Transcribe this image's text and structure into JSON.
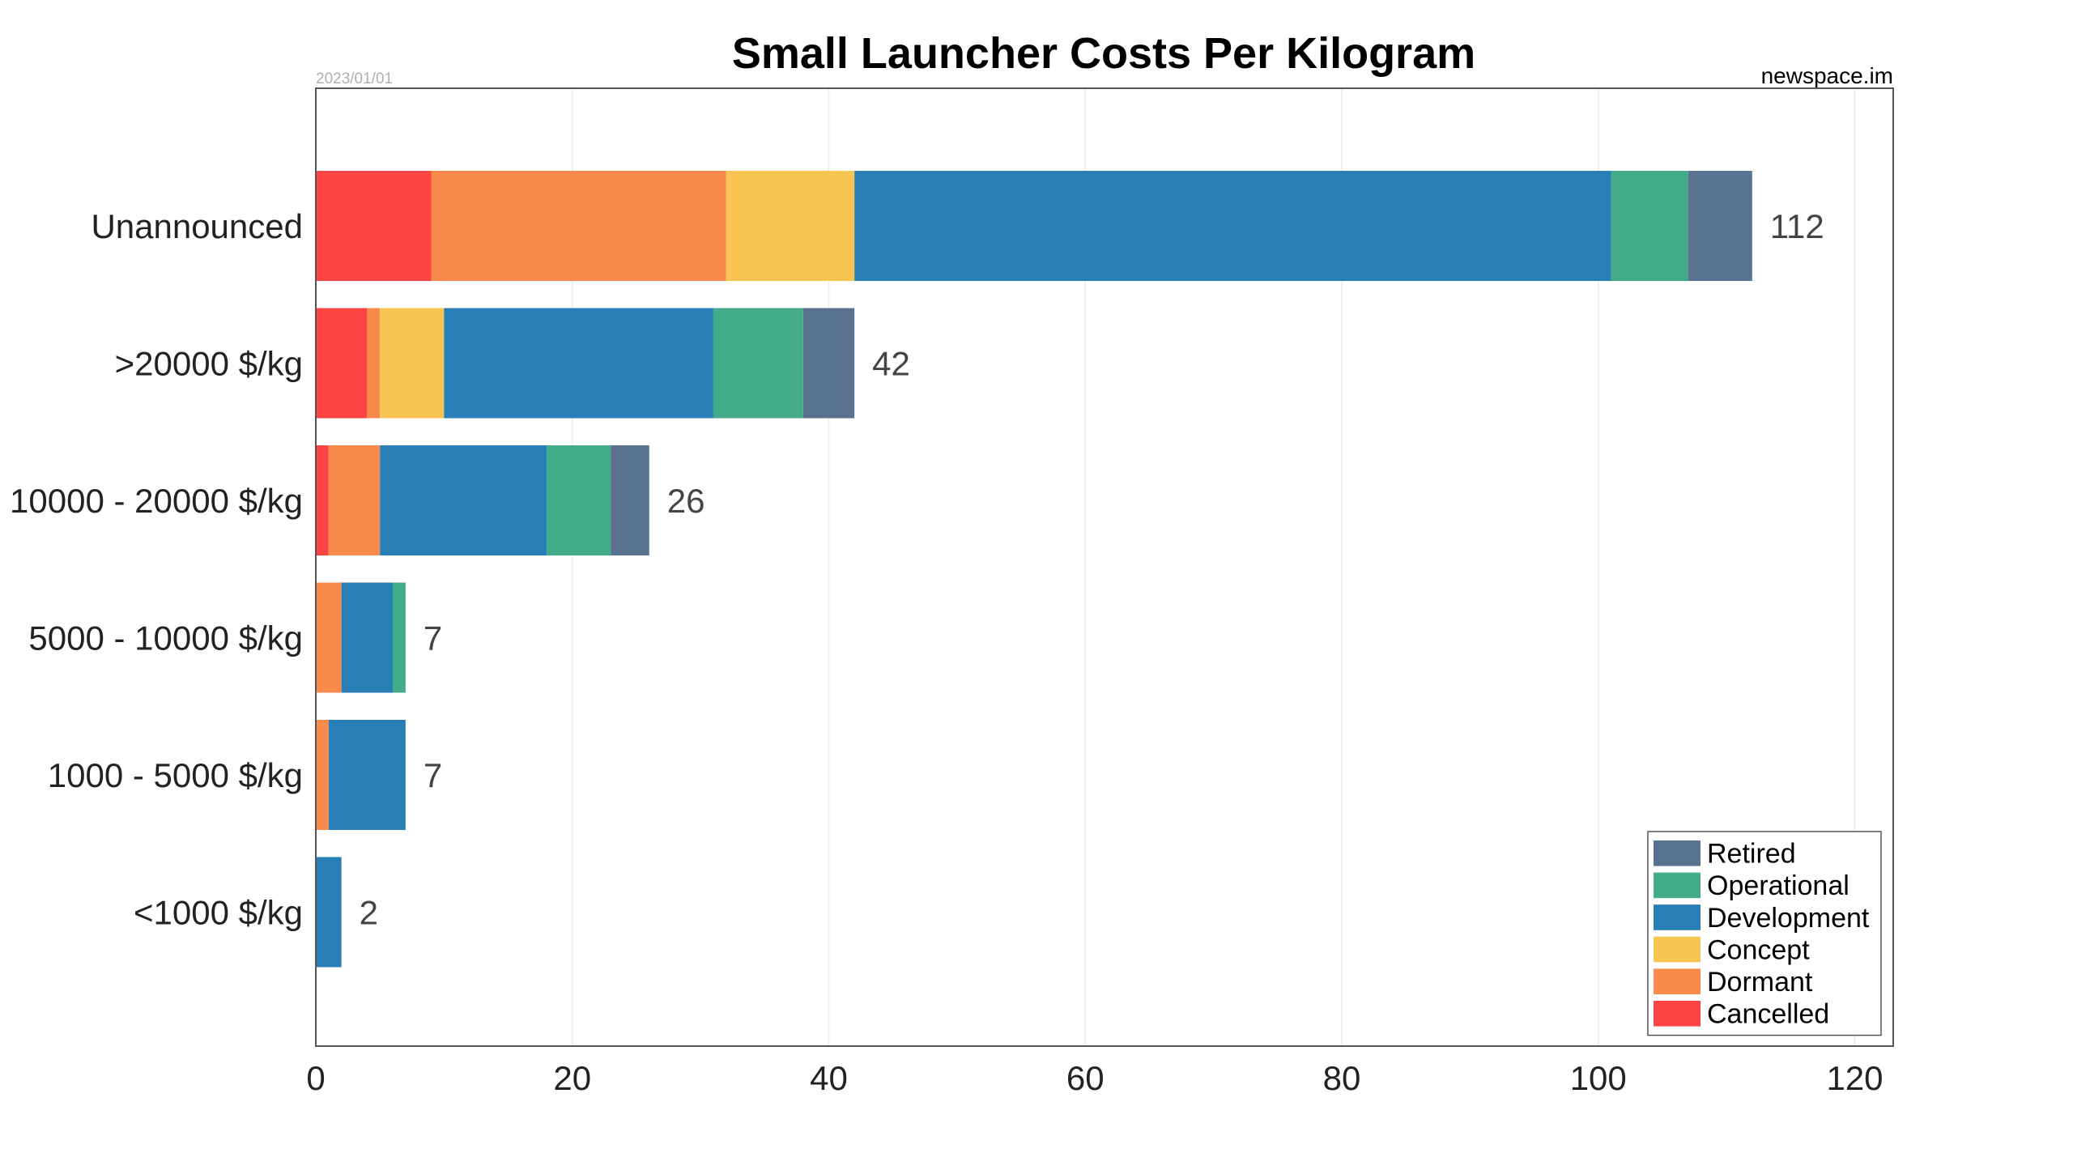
{
  "chart_data": {
    "type": "bar",
    "orientation": "horizontal",
    "stacked": true,
    "title": "Small Launcher Costs Per Kilogram",
    "date_label": "2023/01/01",
    "source_label": "newspace.im",
    "categories": [
      "Unannounced",
      ">20000 $/kg",
      "10000 - 20000 $/kg",
      "5000 - 10000 $/kg",
      "1000 - 5000 $/kg",
      "<1000 $/kg"
    ],
    "series": [
      {
        "name": "Cancelled",
        "color": "#fc4444",
        "values": [
          9,
          4,
          1,
          0,
          0,
          0
        ]
      },
      {
        "name": "Dormant",
        "color": "#fa8a4b",
        "values": [
          23,
          1,
          4,
          2,
          1,
          0
        ]
      },
      {
        "name": "Concept",
        "color": "#f9c552",
        "values": [
          10,
          5,
          0,
          0,
          0,
          0
        ]
      },
      {
        "name": "Development",
        "color": "#287eb7",
        "values": [
          59,
          21,
          13,
          4,
          6,
          2
        ]
      },
      {
        "name": "Operational",
        "color": "#44ab8a",
        "values": [
          6,
          7,
          5,
          1,
          0,
          0
        ]
      },
      {
        "name": "Retired",
        "color": "#58728f",
        "values": [
          5,
          4,
          3,
          0,
          0,
          0
        ]
      }
    ],
    "totals": [
      "112",
      "42",
      "26",
      "7",
      "7",
      "2"
    ],
    "x_ticks": [
      "0",
      "20",
      "40",
      "60",
      "80",
      "100",
      "120"
    ],
    "xlim": [
      0,
      123
    ],
    "grid": "vertical",
    "legend_position": "bottom-right",
    "legend_order": [
      "Retired",
      "Operational",
      "Development",
      "Concept",
      "Dormant",
      "Cancelled"
    ]
  }
}
